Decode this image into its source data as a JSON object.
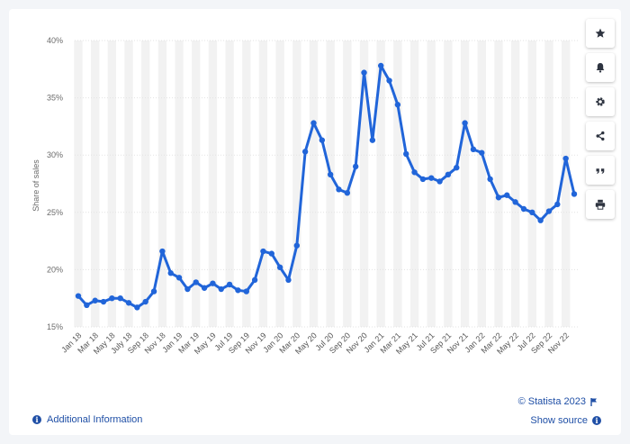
{
  "chart_data": {
    "type": "line",
    "title": "",
    "xlabel": "",
    "ylabel": "Share of sales",
    "ylim": [
      15,
      40
    ],
    "yticks": [
      15,
      20,
      25,
      30,
      35,
      40
    ],
    "ytick_labels": [
      "15%",
      "20%",
      "25%",
      "30%",
      "35%",
      "40%"
    ],
    "grid": true,
    "legend": "none",
    "series_color": "#2165d9",
    "x": [
      "Jan 18",
      "Feb 18",
      "Mar 18",
      "Apr 18",
      "May 18",
      "Jun 18",
      "July 18",
      "Aug 18",
      "Sep 18",
      "Oct 18",
      "Nov 18",
      "Dec 18",
      "Jan 19",
      "Feb 19",
      "Mar 19",
      "Apr 19",
      "May 19",
      "Jun 19",
      "Jul 19",
      "Aug 19",
      "Sep 19",
      "Oct 19",
      "Nov 19",
      "Dec 19",
      "Jan 20",
      "Feb 20",
      "Mar 20",
      "Apr 20",
      "May 20",
      "Jun 20",
      "Jul 20",
      "Aug 20",
      "Sep 20",
      "Oct 20",
      "Nov 20",
      "Dec 20",
      "Jan 21",
      "Feb 21",
      "Mar 21",
      "Apr 21",
      "May 21",
      "Jun 21",
      "Jul 21",
      "Aug 21",
      "Sep 21",
      "Oct 21",
      "Nov 21",
      "Dec 21",
      "Jan 22",
      "Feb 22",
      "Mar 22",
      "Apr 22",
      "May 22",
      "Jun 22",
      "Jul 22",
      "Aug 22",
      "Sep 22",
      "Oct 22",
      "Nov 22",
      "Dec 22"
    ],
    "tick_labels": [
      "Jan 18",
      "Mar 18",
      "May 18",
      "July 18",
      "Sep 18",
      "Nov 18",
      "Jan 19",
      "Mar 19",
      "May 19",
      "Jul 19",
      "Sep 19",
      "Nov 19",
      "Jan 20",
      "Mar 20",
      "May 20",
      "Jul 20",
      "Sep 20",
      "Nov 20",
      "Jan 21",
      "Mar 21",
      "May 21",
      "Jul 21",
      "Sep 21",
      "Nov 21",
      "Jan 22",
      "Mar 22",
      "May 22",
      "Jul 22",
      "Sep 22",
      "Nov 22"
    ],
    "series": [
      {
        "values": [
          17.7,
          16.9,
          17.3,
          17.2,
          17.5,
          17.5,
          17.1,
          16.7,
          17.2,
          18.1,
          21.6,
          19.7,
          19.3,
          18.3,
          18.9,
          18.4,
          18.8,
          18.3,
          18.7,
          18.2,
          18.1,
          19.1,
          21.6,
          21.4,
          20.2,
          19.1,
          22.1,
          30.3,
          32.8,
          31.3,
          28.3,
          27.0,
          26.7,
          29.0,
          37.2,
          31.3,
          37.8,
          36.5,
          34.4,
          30.1,
          28.5,
          27.9,
          28.0,
          27.7,
          28.3,
          28.9,
          32.8,
          30.5,
          30.2,
          27.9,
          26.3,
          26.5,
          25.9,
          25.3,
          25.0,
          24.3,
          25.1,
          25.7,
          29.7,
          26.6
        ]
      }
    ]
  },
  "footer": {
    "copyright": "© Statista 2023",
    "show_source": "Show source",
    "additional_info": "Additional Information"
  },
  "toolbar": {
    "buttons": [
      "star-icon",
      "bell-icon",
      "gear-icon",
      "share-icon",
      "quote-icon",
      "print-icon"
    ]
  }
}
